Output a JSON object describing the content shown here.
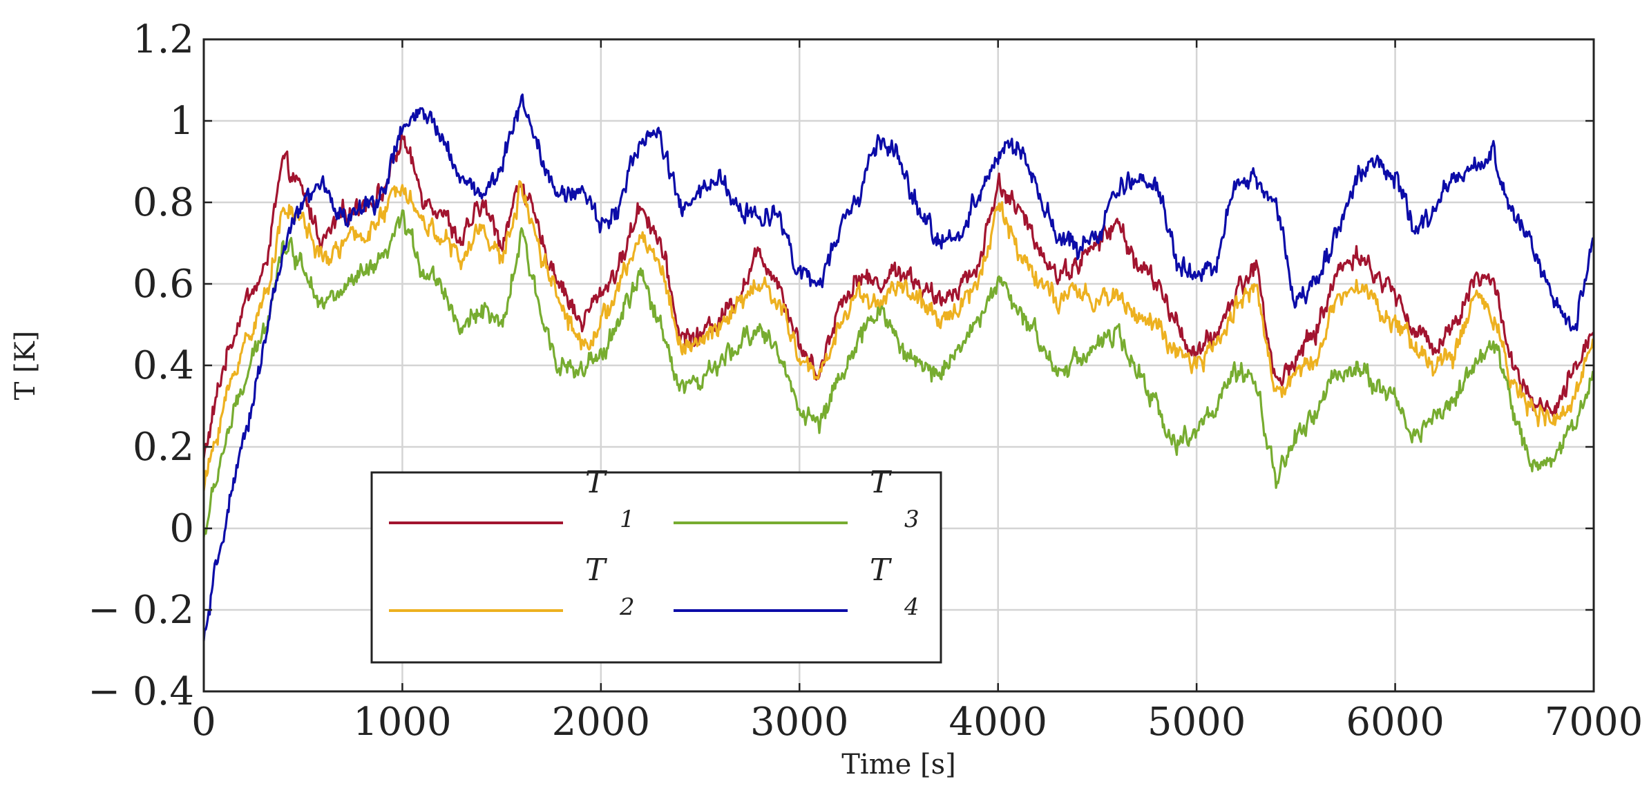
{
  "chart_data": {
    "type": "line",
    "title": "",
    "xlabel": "Time [s]",
    "ylabel": "T [K]",
    "xlim": [
      0,
      7000
    ],
    "ylim": [
      -0.4,
      1.2
    ],
    "grid": true,
    "legend_placement": "lower-left",
    "legend_columns": 2,
    "x_ticks": [
      0,
      1000,
      2000,
      3000,
      4000,
      5000,
      6000,
      7000
    ],
    "x_tick_labels": [
      "0",
      "1000",
      "2000",
      "3000",
      "4000",
      "5000",
      "6000",
      "7000"
    ],
    "y_ticks": [
      -0.4,
      -0.2,
      0,
      0.2,
      0.4,
      0.6,
      0.8,
      1,
      1.2
    ],
    "y_tick_labels": [
      "− 0.4",
      "− 0.2",
      "0",
      "0.2",
      "0.4",
      "0.6",
      "0.8",
      "1",
      "1.2"
    ],
    "x": [
      0,
      100,
      200,
      300,
      400,
      500,
      600,
      700,
      800,
      900,
      1000,
      1100,
      1200,
      1300,
      1400,
      1500,
      1600,
      1700,
      1800,
      1900,
      2000,
      2100,
      2200,
      2300,
      2400,
      2500,
      2600,
      2700,
      2800,
      2900,
      3000,
      3100,
      3200,
      3300,
      3400,
      3500,
      3600,
      3700,
      3800,
      3900,
      4000,
      4100,
      4200,
      4300,
      4400,
      4500,
      4600,
      4700,
      4800,
      4900,
      5000,
      5100,
      5200,
      5300,
      5400,
      5500,
      5600,
      5700,
      5800,
      5900,
      6000,
      6100,
      6200,
      6300,
      6400,
      6500,
      6600,
      6700,
      6800,
      6900,
      7000
    ],
    "series": [
      {
        "name_main": "T",
        "name_sub": "1",
        "color": "#a2142f",
        "values": [
          0.17,
          0.4,
          0.55,
          0.62,
          0.9,
          0.82,
          0.7,
          0.77,
          0.8,
          0.82,
          0.96,
          0.82,
          0.78,
          0.7,
          0.8,
          0.7,
          0.86,
          0.7,
          0.6,
          0.5,
          0.58,
          0.65,
          0.8,
          0.7,
          0.47,
          0.47,
          0.52,
          0.58,
          0.68,
          0.6,
          0.45,
          0.38,
          0.55,
          0.62,
          0.6,
          0.64,
          0.6,
          0.55,
          0.6,
          0.64,
          0.85,
          0.78,
          0.7,
          0.62,
          0.65,
          0.7,
          0.75,
          0.65,
          0.6,
          0.5,
          0.42,
          0.48,
          0.58,
          0.65,
          0.35,
          0.42,
          0.48,
          0.62,
          0.68,
          0.62,
          0.58,
          0.48,
          0.45,
          0.5,
          0.62,
          0.6,
          0.38,
          0.3,
          0.28,
          0.38,
          0.5
        ]
      },
      {
        "name_main": "T",
        "name_sub": "2",
        "color": "#edb120",
        "values": [
          0.1,
          0.3,
          0.45,
          0.55,
          0.78,
          0.76,
          0.65,
          0.7,
          0.72,
          0.76,
          0.86,
          0.75,
          0.72,
          0.65,
          0.75,
          0.65,
          0.84,
          0.68,
          0.55,
          0.45,
          0.5,
          0.6,
          0.72,
          0.65,
          0.45,
          0.45,
          0.5,
          0.55,
          0.6,
          0.55,
          0.42,
          0.37,
          0.5,
          0.58,
          0.55,
          0.6,
          0.56,
          0.5,
          0.55,
          0.6,
          0.8,
          0.68,
          0.62,
          0.55,
          0.58,
          0.55,
          0.58,
          0.52,
          0.5,
          0.42,
          0.4,
          0.45,
          0.55,
          0.6,
          0.32,
          0.38,
          0.42,
          0.55,
          0.62,
          0.55,
          0.5,
          0.45,
          0.4,
          0.42,
          0.58,
          0.52,
          0.35,
          0.28,
          0.26,
          0.3,
          0.5
        ]
      },
      {
        "name_main": "T",
        "name_sub": "3",
        "color": "#77ac30",
        "values": [
          -0.02,
          0.2,
          0.35,
          0.48,
          0.7,
          0.65,
          0.55,
          0.58,
          0.62,
          0.65,
          0.76,
          0.64,
          0.6,
          0.48,
          0.55,
          0.48,
          0.72,
          0.52,
          0.4,
          0.38,
          0.42,
          0.52,
          0.62,
          0.5,
          0.35,
          0.36,
          0.4,
          0.45,
          0.5,
          0.42,
          0.3,
          0.25,
          0.38,
          0.45,
          0.55,
          0.45,
          0.4,
          0.38,
          0.45,
          0.5,
          0.62,
          0.52,
          0.48,
          0.38,
          0.42,
          0.45,
          0.48,
          0.38,
          0.3,
          0.2,
          0.25,
          0.3,
          0.38,
          0.35,
          0.12,
          0.22,
          0.28,
          0.38,
          0.4,
          0.35,
          0.32,
          0.22,
          0.28,
          0.32,
          0.4,
          0.45,
          0.28,
          0.15,
          0.18,
          0.25,
          0.38
        ]
      },
      {
        "name_main": "T",
        "name_sub": "4",
        "color": "#0c0ca8",
        "values": [
          -0.28,
          0.0,
          0.2,
          0.45,
          0.68,
          0.8,
          0.84,
          0.76,
          0.78,
          0.82,
          0.98,
          1.02,
          0.96,
          0.86,
          0.82,
          0.88,
          1.06,
          0.92,
          0.8,
          0.84,
          0.74,
          0.8,
          0.96,
          0.96,
          0.78,
          0.82,
          0.86,
          0.78,
          0.76,
          0.78,
          0.62,
          0.6,
          0.72,
          0.82,
          0.96,
          0.9,
          0.78,
          0.7,
          0.72,
          0.82,
          0.92,
          0.94,
          0.82,
          0.72,
          0.68,
          0.72,
          0.82,
          0.86,
          0.85,
          0.66,
          0.6,
          0.66,
          0.84,
          0.86,
          0.8,
          0.54,
          0.62,
          0.72,
          0.86,
          0.9,
          0.86,
          0.72,
          0.78,
          0.86,
          0.88,
          0.92,
          0.76,
          0.68,
          0.56,
          0.48,
          0.72
        ]
      }
    ]
  }
}
